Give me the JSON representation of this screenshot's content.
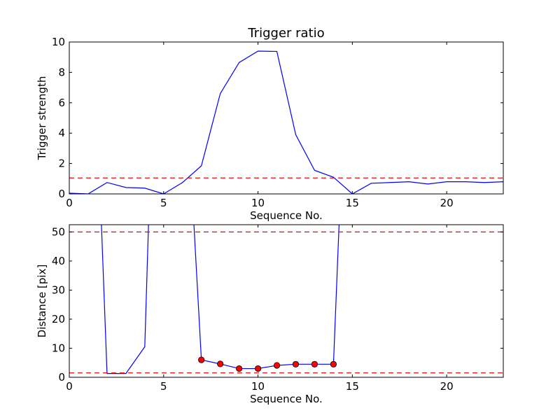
{
  "chart_data": [
    {
      "type": "line",
      "title": "Trigger ratio",
      "xlabel": "Sequence No.",
      "ylabel": "Trigger strength",
      "xlim": [
        0,
        23
      ],
      "ylim": [
        0,
        10
      ],
      "xticks": [
        0,
        5,
        10,
        15,
        20
      ],
      "yticks": [
        0,
        2,
        4,
        6,
        8,
        10
      ],
      "grid": false,
      "series": [
        {
          "color": "#0000ff",
          "x": [
            0,
            1,
            2,
            3,
            4,
            5,
            6,
            7,
            8,
            9,
            10,
            11,
            12,
            13,
            14,
            15,
            16,
            17,
            18,
            19,
            20,
            21,
            22,
            23
          ],
          "y": [
            0.05,
            0,
            0.75,
            0.42,
            0.38,
            0,
            0.75,
            1.85,
            6.6,
            8.65,
            9.4,
            9.38,
            3.9,
            1.55,
            1.1,
            0,
            0.7,
            0.75,
            0.8,
            0.65,
            0.8,
            0.8,
            0.75,
            0.8
          ]
        }
      ],
      "hlines": [
        {
          "y": 1.05,
          "color": "#ff0000",
          "style": "dashed"
        }
      ]
    },
    {
      "type": "line",
      "title": "",
      "xlabel": "Sequence No.",
      "ylabel": "Distance [pix]",
      "xlim": [
        0,
        23
      ],
      "ylim": [
        0,
        52.5
      ],
      "xticks": [
        0,
        5,
        10,
        15,
        20
      ],
      "yticks": [
        0,
        10,
        20,
        30,
        40,
        50
      ],
      "grid": false,
      "series": [
        {
          "color": "#0000ff",
          "x": [
            1.7,
            2,
            3,
            4,
            4.2
          ],
          "y": [
            53,
            1.3,
            1.3,
            10.5,
            53
          ]
        },
        {
          "color": "#0000ff",
          "x": [
            6.6,
            7,
            8,
            9,
            10,
            11,
            12,
            13,
            14,
            14.3
          ],
          "y": [
            53,
            6,
            4.6,
            3,
            3,
            4.1,
            4.5,
            4.5,
            4.5,
            53
          ]
        }
      ],
      "markers": {
        "color": "#ff0000",
        "x": [
          7,
          8,
          9,
          10,
          11,
          12,
          13,
          14
        ],
        "y": [
          6,
          4.6,
          3,
          3,
          4.1,
          4.5,
          4.5,
          4.5
        ]
      },
      "hlines": [
        {
          "y": 50,
          "color": "#ff0000",
          "style": "dashed"
        },
        {
          "y": 1.5,
          "color": "#ff0000",
          "style": "dashed"
        }
      ]
    }
  ]
}
